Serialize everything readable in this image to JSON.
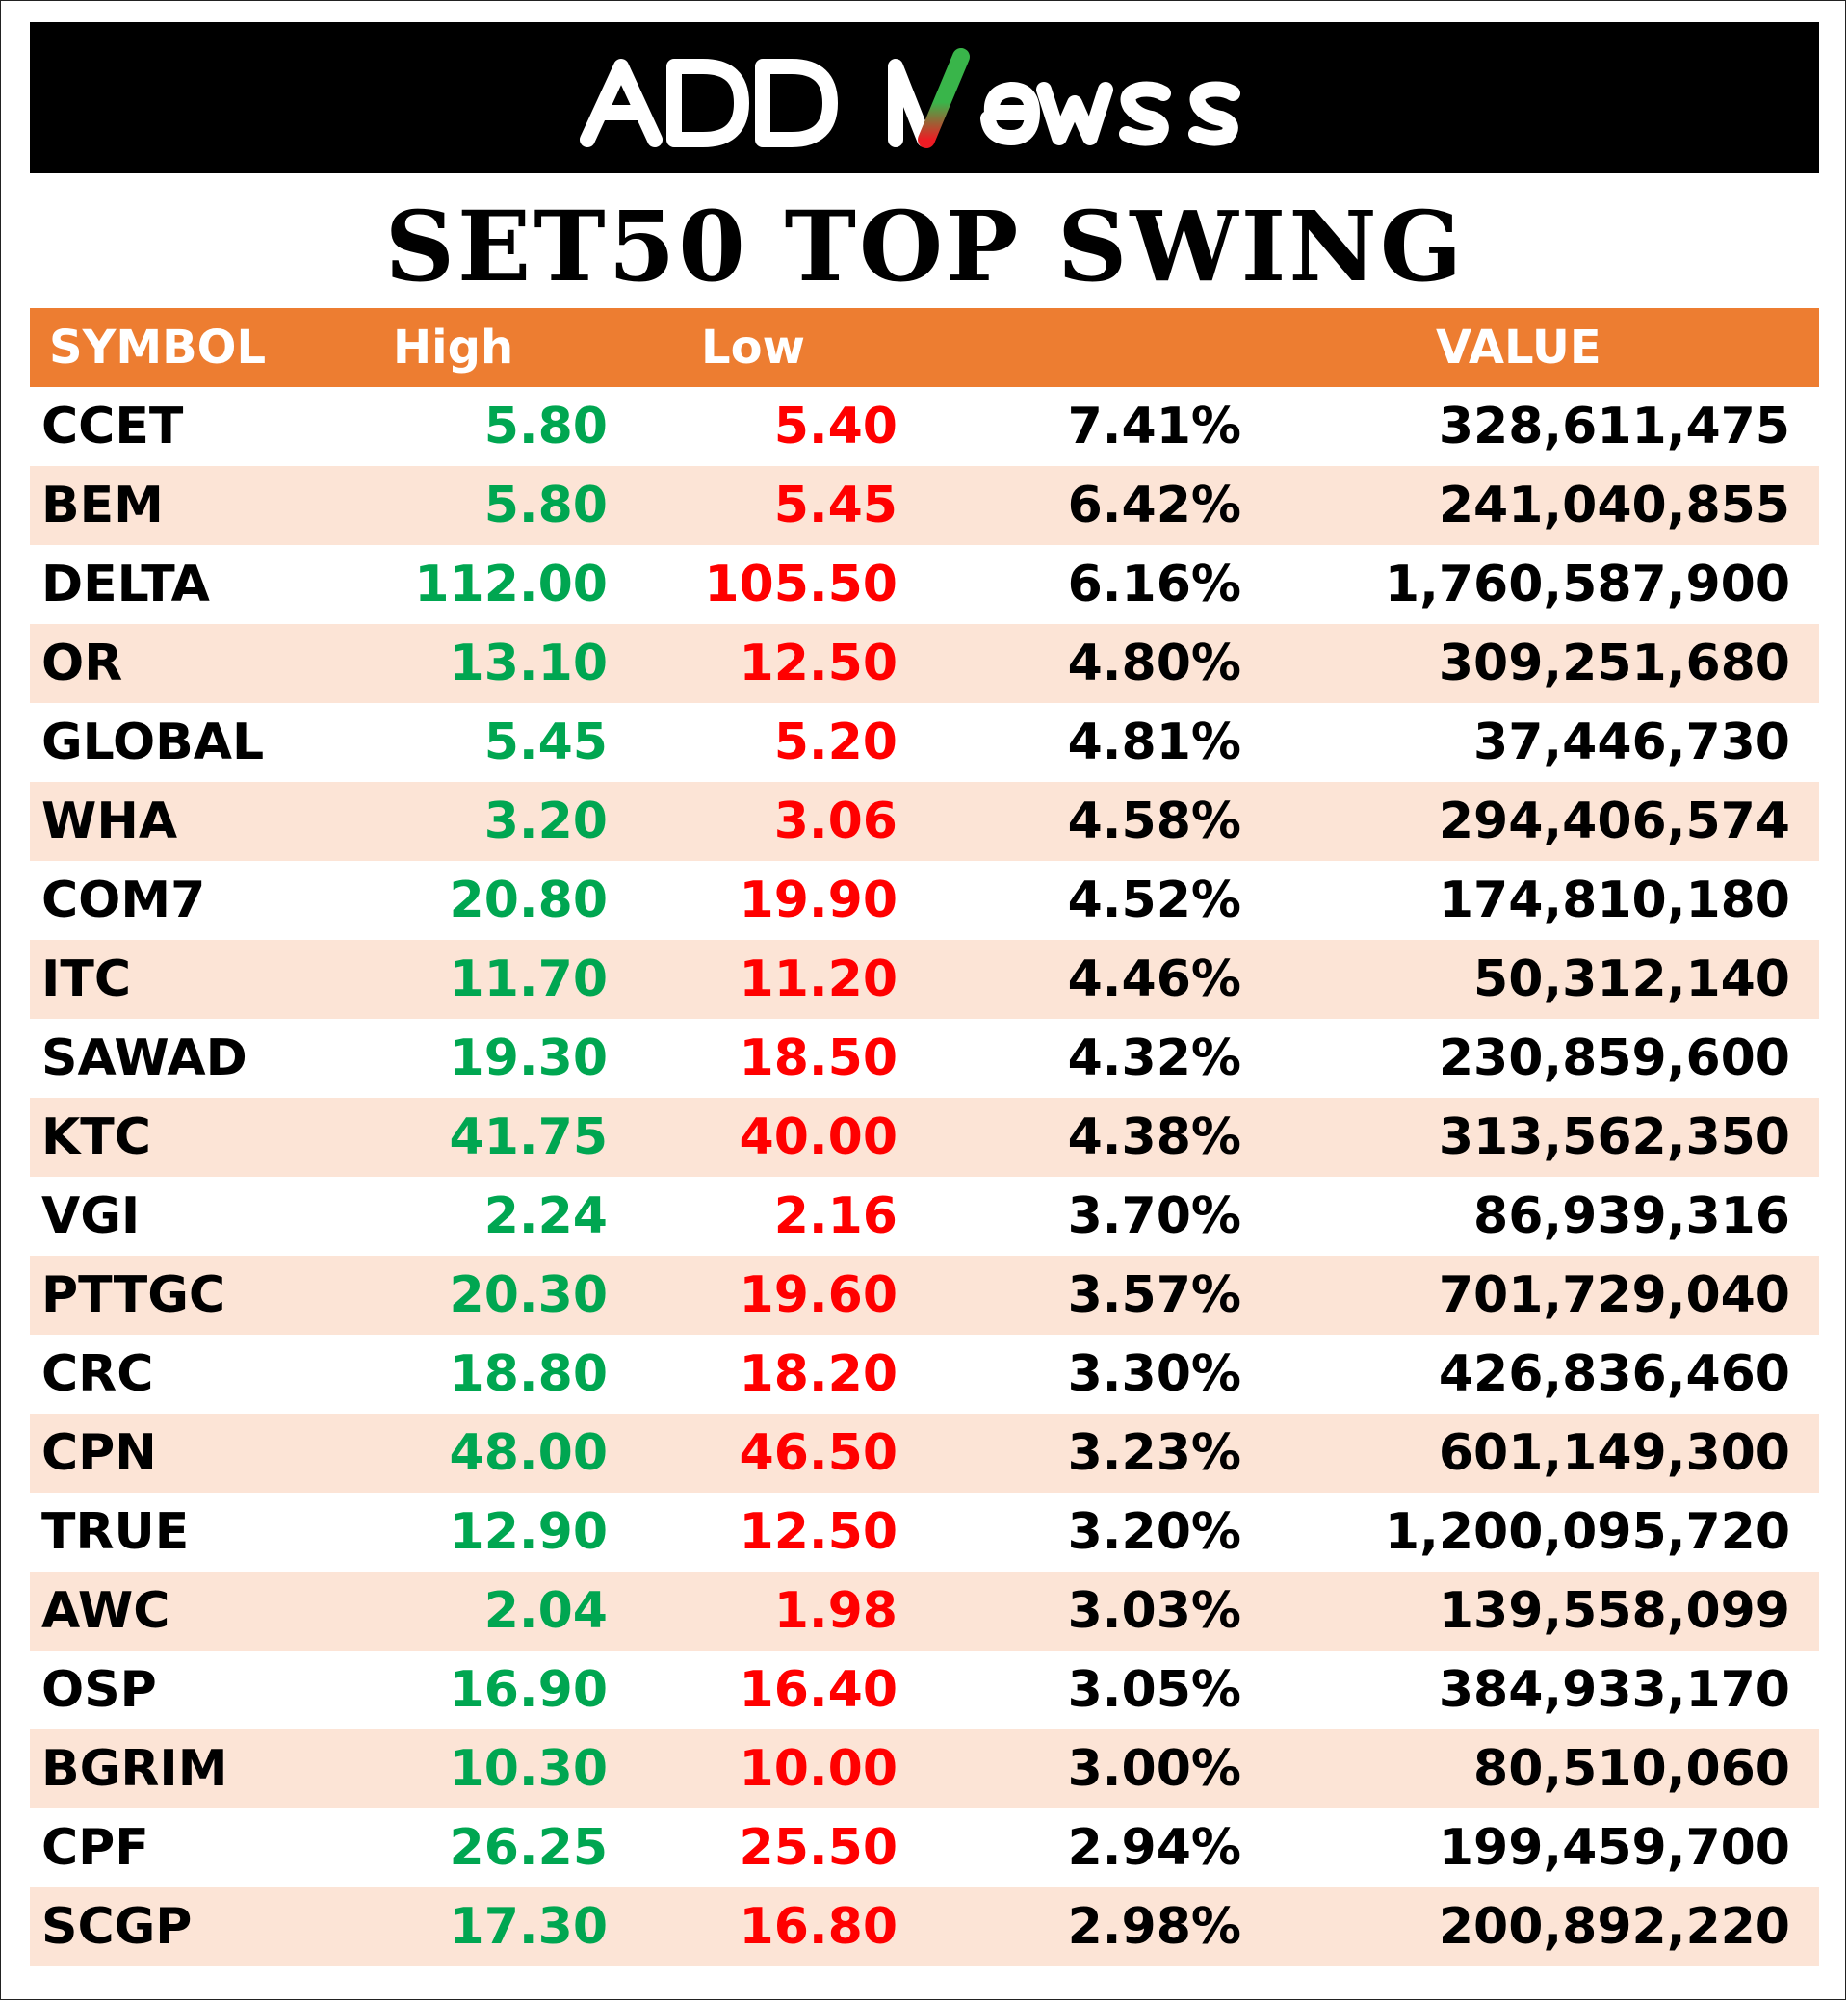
{
  "brand": {
    "logo_text": "ADDNewss"
  },
  "title": "SET50 TOP SWING",
  "table": {
    "headers": {
      "symbol": "SYMBOL",
      "high": "High",
      "low": "Low",
      "value": "VALUE"
    },
    "rows": [
      {
        "symbol": "CCET",
        "high": "5.80",
        "low": "5.40",
        "pct": "7.41%",
        "value": "328,611,475"
      },
      {
        "symbol": "BEM",
        "high": "5.80",
        "low": "5.45",
        "pct": "6.42%",
        "value": "241,040,855"
      },
      {
        "symbol": "DELTA",
        "high": "112.00",
        "low": "105.50",
        "pct": "6.16%",
        "value": "1,760,587,900"
      },
      {
        "symbol": "OR",
        "high": "13.10",
        "low": "12.50",
        "pct": "4.80%",
        "value": "309,251,680"
      },
      {
        "symbol": "GLOBAL",
        "high": "5.45",
        "low": "5.20",
        "pct": "4.81%",
        "value": "37,446,730"
      },
      {
        "symbol": "WHA",
        "high": "3.20",
        "low": "3.06",
        "pct": "4.58%",
        "value": "294,406,574"
      },
      {
        "symbol": "COM7",
        "high": "20.80",
        "low": "19.90",
        "pct": "4.52%",
        "value": "174,810,180"
      },
      {
        "symbol": "ITC",
        "high": "11.70",
        "low": "11.20",
        "pct": "4.46%",
        "value": "50,312,140"
      },
      {
        "symbol": "SAWAD",
        "high": "19.30",
        "low": "18.50",
        "pct": "4.32%",
        "value": "230,859,600"
      },
      {
        "symbol": "KTC",
        "high": "41.75",
        "low": "40.00",
        "pct": "4.38%",
        "value": "313,562,350"
      },
      {
        "symbol": "VGI",
        "high": "2.24",
        "low": "2.16",
        "pct": "3.70%",
        "value": "86,939,316"
      },
      {
        "symbol": "PTTGC",
        "high": "20.30",
        "low": "19.60",
        "pct": "3.57%",
        "value": "701,729,040"
      },
      {
        "symbol": "CRC",
        "high": "18.80",
        "low": "18.20",
        "pct": "3.30%",
        "value": "426,836,460"
      },
      {
        "symbol": "CPN",
        "high": "48.00",
        "low": "46.50",
        "pct": "3.23%",
        "value": "601,149,300"
      },
      {
        "symbol": "TRUE",
        "high": "12.90",
        "low": "12.50",
        "pct": "3.20%",
        "value": "1,200,095,720"
      },
      {
        "symbol": "AWC",
        "high": "2.04",
        "low": "1.98",
        "pct": "3.03%",
        "value": "139,558,099"
      },
      {
        "symbol": "OSP",
        "high": "16.90",
        "low": "16.40",
        "pct": "3.05%",
        "value": "384,933,170"
      },
      {
        "symbol": "BGRIM",
        "high": "10.30",
        "low": "10.00",
        "pct": "3.00%",
        "value": "80,510,060"
      },
      {
        "symbol": "CPF",
        "high": "26.25",
        "low": "25.50",
        "pct": "2.94%",
        "value": "199,459,700"
      },
      {
        "symbol": "SCGP",
        "high": "17.30",
        "low": "16.80",
        "pct": "2.98%",
        "value": "200,892,220"
      }
    ]
  },
  "colors": {
    "header_bg": "#ED7D31",
    "alt_row_bg": "#FCE4D6",
    "high_text": "#00A651",
    "low_text": "#FF0000",
    "banner_bg": "#000000",
    "logo_accent_green": "#39B54A",
    "logo_accent_red": "#ED1C24"
  }
}
